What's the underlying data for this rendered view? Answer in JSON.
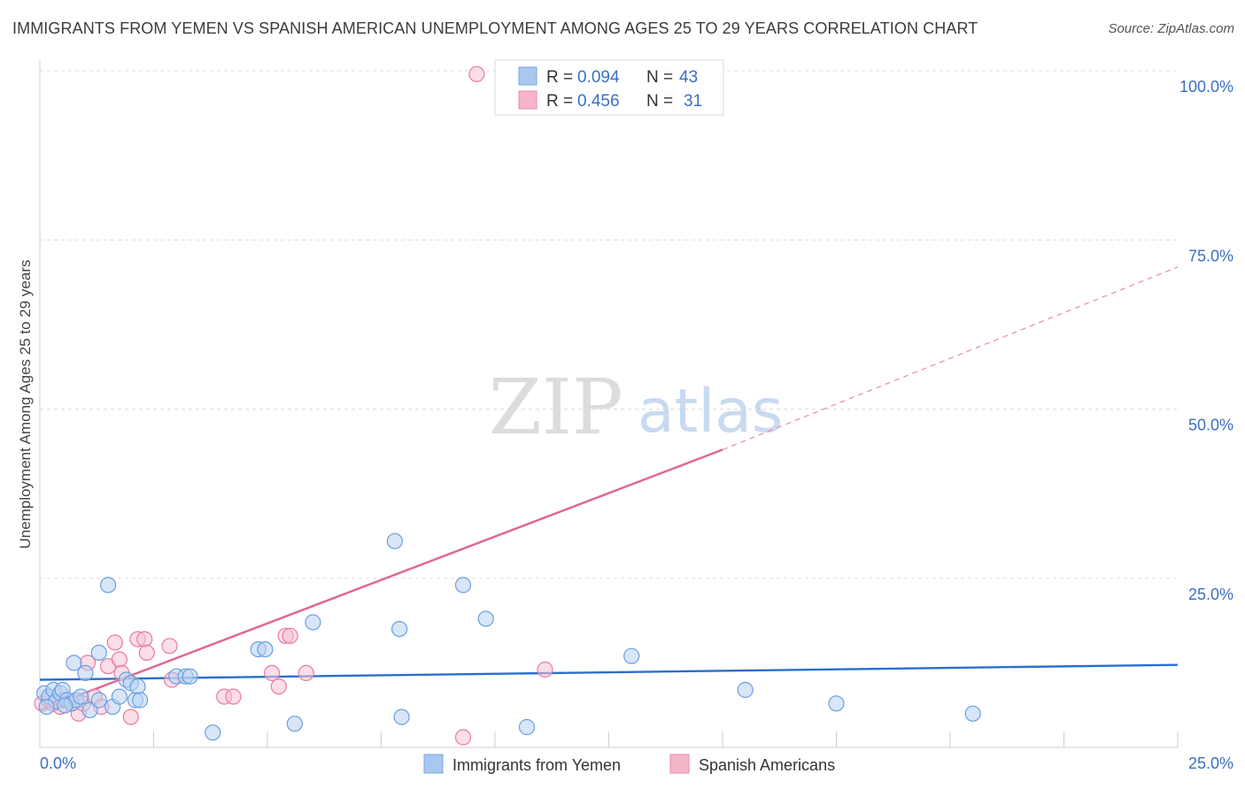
{
  "header": {
    "title": "IMMIGRANTS FROM YEMEN VS SPANISH AMERICAN UNEMPLOYMENT AMONG AGES 25 TO 29 YEARS CORRELATION CHART",
    "source": "Source: ZipAtlas.com"
  },
  "watermark": {
    "zip": "ZIP",
    "atlas": "atlas"
  },
  "legend": {
    "r_label": "R =",
    "n_label": "N =",
    "rows": [
      {
        "r": "0.094",
        "n": "43",
        "color": "#a9c8ef"
      },
      {
        "r": "0.456",
        "n": "31",
        "color": "#f4b6c8"
      }
    ]
  },
  "chart_data": {
    "type": "scatter",
    "title": "IMMIGRANTS FROM YEMEN VS SPANISH AMERICAN UNEMPLOYMENT AMONG AGES 25 TO 29 YEARS CORRELATION CHART",
    "xlabel": "",
    "ylabel": "Unemployment Among Ages 25 to 29 years",
    "xlim": [
      0,
      25
    ],
    "ylim": [
      0,
      100
    ],
    "x_tick_labels": [
      "0.0%",
      "25.0%"
    ],
    "y_ticks": [
      25,
      50,
      75,
      100
    ],
    "y_tick_labels": [
      "25.0%",
      "50.0%",
      "75.0%",
      "100.0%"
    ],
    "grid": true,
    "series": [
      {
        "name": "Immigrants from Yemen",
        "color": "#6a9fe0",
        "fill": "#b8d2f2",
        "trend": {
          "x0": 0,
          "y0": 10.0,
          "x1": 25,
          "y1": 12.2
        },
        "points": [
          [
            0.1,
            8.0
          ],
          [
            0.2,
            7.5
          ],
          [
            0.3,
            8.5
          ],
          [
            0.35,
            6.8
          ],
          [
            0.45,
            8.0
          ],
          [
            0.5,
            8.5
          ],
          [
            0.6,
            7.0
          ],
          [
            0.7,
            6.5
          ],
          [
            0.75,
            12.5
          ],
          [
            0.8,
            7.0
          ],
          [
            0.9,
            7.5
          ],
          [
            1.0,
            11.0
          ],
          [
            1.1,
            5.5
          ],
          [
            1.3,
            14.0
          ],
          [
            1.3,
            7.0
          ],
          [
            1.5,
            24.0
          ],
          [
            1.6,
            6.0
          ],
          [
            1.75,
            7.5
          ],
          [
            1.9,
            10.0
          ],
          [
            2.0,
            9.5
          ],
          [
            2.1,
            7.0
          ],
          [
            2.15,
            9.0
          ],
          [
            2.2,
            7.0
          ],
          [
            3.0,
            10.5
          ],
          [
            3.2,
            10.5
          ],
          [
            3.3,
            10.5
          ],
          [
            3.8,
            2.2
          ],
          [
            4.8,
            14.5
          ],
          [
            4.95,
            14.5
          ],
          [
            5.6,
            3.5
          ],
          [
            6.0,
            18.5
          ],
          [
            7.8,
            30.5
          ],
          [
            7.9,
            17.5
          ],
          [
            7.95,
            4.5
          ],
          [
            9.3,
            24.0
          ],
          [
            9.8,
            19.0
          ],
          [
            10.7,
            3.0
          ],
          [
            13.0,
            13.5
          ],
          [
            15.5,
            8.5
          ],
          [
            17.5,
            6.5
          ],
          [
            20.5,
            5.0
          ],
          [
            0.15,
            6.0
          ],
          [
            0.55,
            6.2
          ]
        ]
      },
      {
        "name": "Spanish Americans",
        "color": "#e97aa0",
        "fill": "#f7c2d3",
        "trend": {
          "x0": 0,
          "y0": 5.5,
          "x1": 15,
          "y1": 44.0,
          "dash_x1": 25,
          "dash_y1": 71.0
        },
        "points": [
          [
            0.05,
            6.5
          ],
          [
            0.2,
            7.0
          ],
          [
            0.3,
            6.5
          ],
          [
            0.45,
            6.0
          ],
          [
            0.5,
            7.0
          ],
          [
            0.7,
            6.5
          ],
          [
            0.85,
            5.0
          ],
          [
            0.95,
            6.5
          ],
          [
            1.05,
            12.5
          ],
          [
            1.2,
            7.5
          ],
          [
            1.35,
            6.0
          ],
          [
            1.5,
            12.0
          ],
          [
            1.65,
            15.5
          ],
          [
            1.75,
            13.0
          ],
          [
            1.8,
            11.0
          ],
          [
            2.0,
            4.5
          ],
          [
            2.15,
            16.0
          ],
          [
            2.3,
            16.0
          ],
          [
            2.35,
            14.0
          ],
          [
            2.85,
            15.0
          ],
          [
            2.9,
            10.0
          ],
          [
            4.05,
            7.5
          ],
          [
            4.25,
            7.5
          ],
          [
            5.1,
            11.0
          ],
          [
            5.25,
            9.0
          ],
          [
            5.4,
            16.5
          ],
          [
            5.5,
            16.5
          ],
          [
            5.85,
            11.0
          ],
          [
            9.3,
            1.5
          ],
          [
            9.6,
            99.5
          ],
          [
            11.1,
            11.5
          ]
        ]
      }
    ]
  },
  "bottom_legend": [
    {
      "label": "Immigrants from Yemen",
      "color": "#a9c8ef"
    },
    {
      "label": "Spanish Americans",
      "color": "#f4b6c8"
    }
  ]
}
